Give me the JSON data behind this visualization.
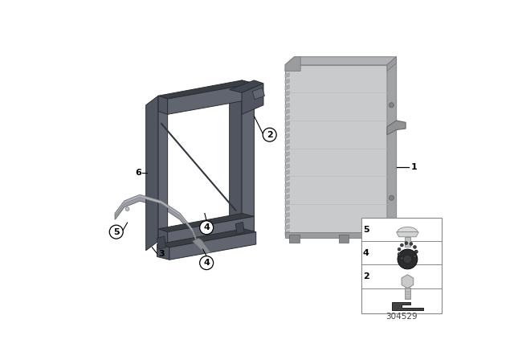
{
  "bg_color": "#ffffff",
  "part_number": "304529",
  "frame_color": "#505560",
  "frame_dark": "#3a3d42",
  "frame_mid": "#606570",
  "cooler_face": "#c8cace",
  "cooler_side": "#a8aaae",
  "cooler_top": "#b0b2b6",
  "cooler_fin": "#b0b2b6",
  "arch_color": "#9a9ea4",
  "arch_dark": "#7a7e84"
}
